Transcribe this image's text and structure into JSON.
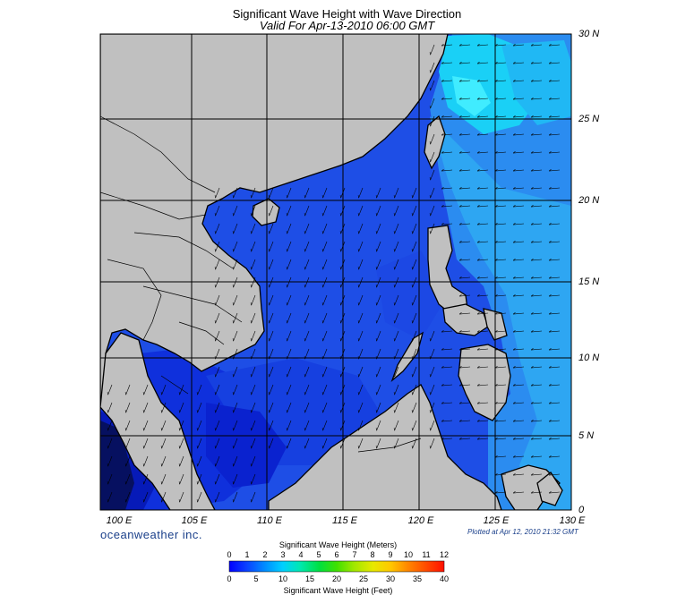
{
  "title": "Significant Wave Height with Wave Direction",
  "subtitle": "Valid For Apr-13-2010 06:00 GMT",
  "brand": "oceanweather inc.",
  "plotted": "Plotted at Apr 12, 2010 21:32 GMT",
  "lat_labels": [
    "30 N",
    "25 N",
    "20 N",
    "15 N",
    "10 N",
    "5 N",
    "0"
  ],
  "lon_labels": [
    "100 E",
    "105 E",
    "110 E",
    "115 E",
    "120 E",
    "125 E",
    "130 E"
  ],
  "colorbar": {
    "title_top": "Significant Wave Height (Meters)",
    "title_bottom": "Significant Wave Height (Feet)",
    "meters": [
      "0",
      "1",
      "2",
      "3",
      "4",
      "5",
      "6",
      "7",
      "8",
      "9",
      "10",
      "11",
      "12"
    ],
    "feet": [
      "0",
      "5",
      "10",
      "15",
      "20",
      "25",
      "30",
      "35",
      "40"
    ],
    "colors": [
      "#0000ff",
      "#1a3fff",
      "#0090ff",
      "#00d8ff",
      "#00e8a0",
      "#00e020",
      "#60e800",
      "#c8e800",
      "#ffe000",
      "#ff9800",
      "#ff3000"
    ]
  },
  "colors": {
    "land": "#c0c0c0",
    "sea_deep": "#0a2ad8",
    "sea_mid": "#1a5ae8",
    "sea_light": "#20a8f0",
    "sea_cyan": "#10e8f8"
  }
}
